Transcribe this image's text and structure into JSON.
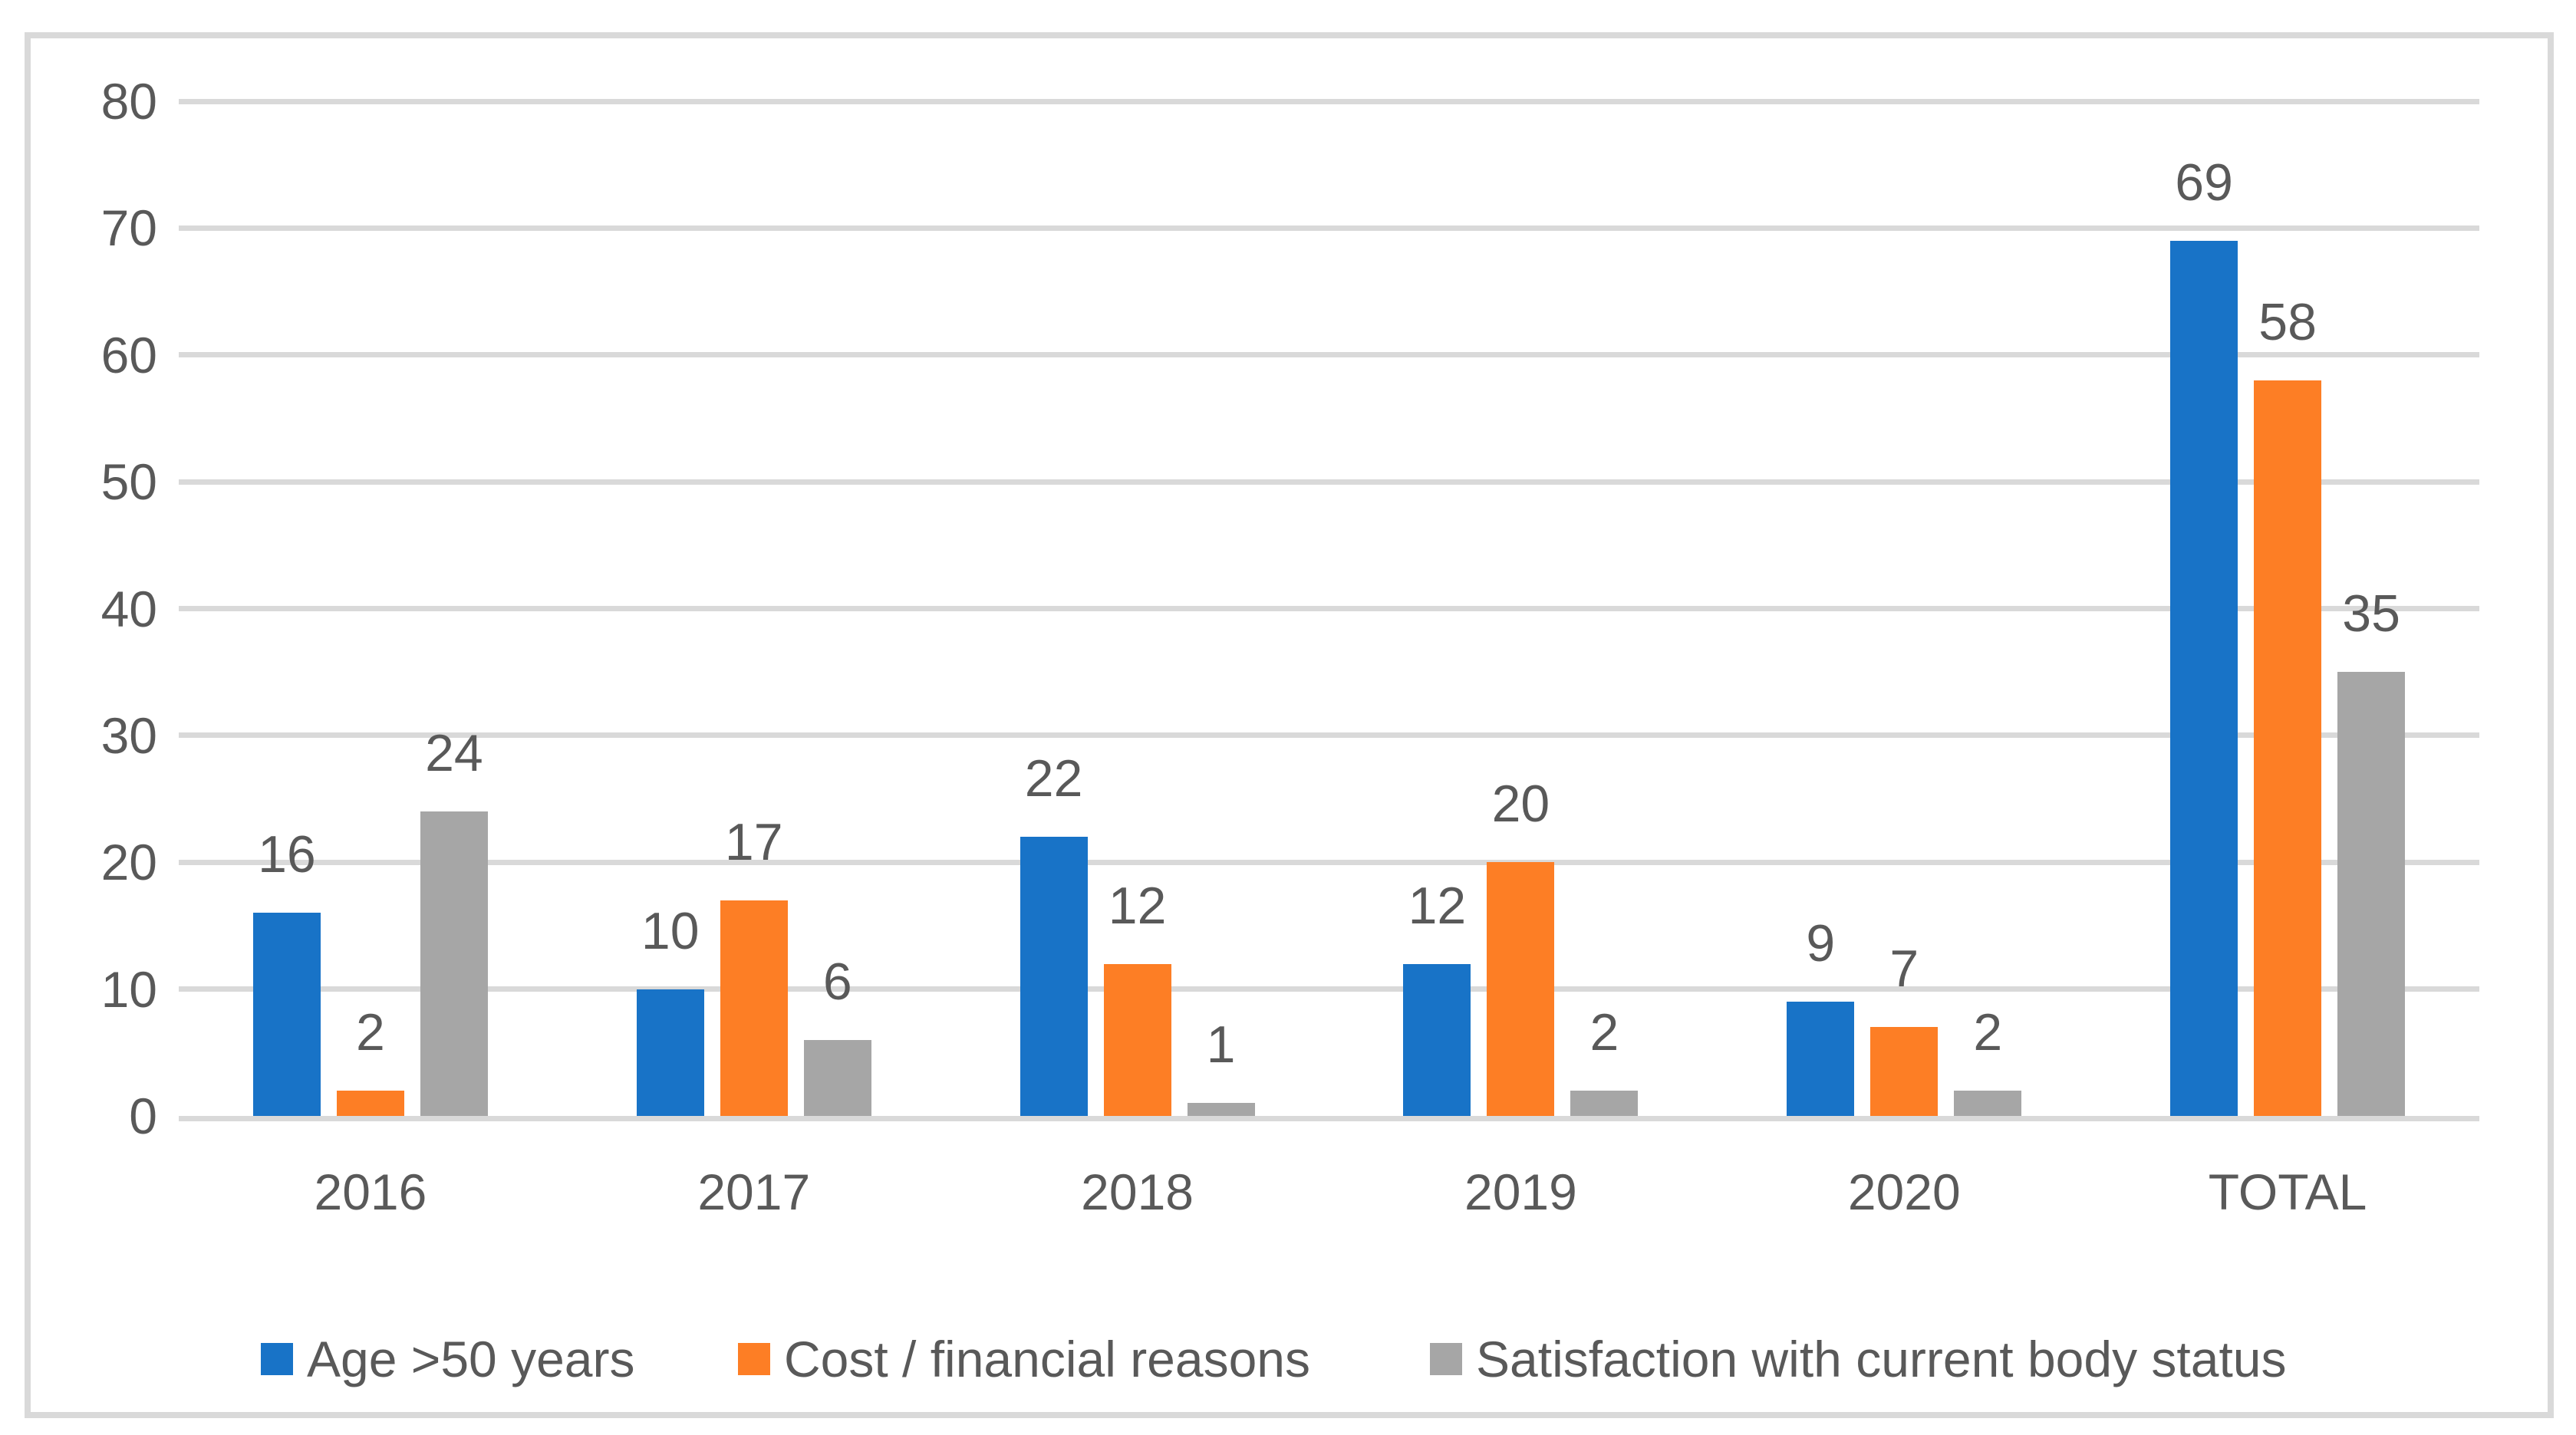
{
  "chart_data": {
    "type": "bar",
    "title": "",
    "categories": [
      "2016",
      "2017",
      "2018",
      "2019",
      "2020",
      "TOTAL"
    ],
    "series": [
      {
        "name": "Age >50 years",
        "color": "#1873C7",
        "values": [
          16,
          10,
          22,
          12,
          9,
          69
        ]
      },
      {
        "name": "Cost / financial reasons",
        "color": "#FD7E25",
        "values": [
          2,
          17,
          12,
          20,
          7,
          58
        ]
      },
      {
        "name": "Satisfaction with current body status",
        "color": "#A6A6A6",
        "values": [
          24,
          6,
          1,
          2,
          2,
          35
        ]
      }
    ],
    "ylim": [
      0,
      80
    ],
    "yticks": [
      0,
      10,
      20,
      30,
      40,
      50,
      60,
      70,
      80
    ],
    "grid": true,
    "legend_position": "bottom",
    "data_labels": true
  },
  "colors": {
    "background": "#FFFFFF",
    "frame_border": "#D9D9D9",
    "gridline": "#D9D9D9",
    "axis_line": "#D9D9D9",
    "label_text": "#595959"
  }
}
